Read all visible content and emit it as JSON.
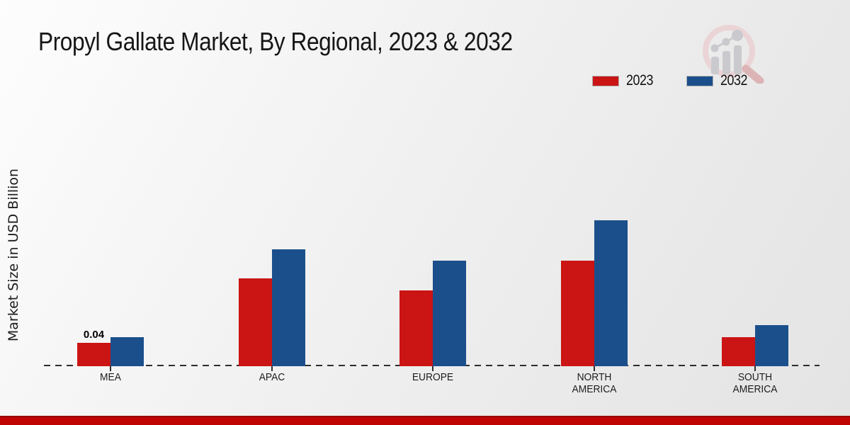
{
  "chart_data": {
    "type": "bar",
    "title": "Propyl Gallate Market, By Regional, 2023 & 2032",
    "xlabel": "",
    "ylabel": "Market Size in USD Billion",
    "categories": [
      "MEA",
      "APAC",
      "EUROPE",
      "NORTH AMERICA",
      "SOUTH AMERICA"
    ],
    "series": [
      {
        "name": "2023",
        "color": "#cb1414",
        "values": [
          0.04,
          0.15,
          0.13,
          0.18,
          0.05
        ]
      },
      {
        "name": "2032",
        "color": "#1b4f8b",
        "values": [
          0.05,
          0.2,
          0.18,
          0.25,
          0.07
        ]
      }
    ],
    "data_labels": [
      {
        "category": "MEA",
        "series": "2023",
        "text": "0.04"
      }
    ],
    "ylim": [
      0,
      0.3
    ],
    "grid": false,
    "axis_style": "dashed-baseline-only",
    "legend_position": "top-right"
  },
  "watermark": {
    "icon": "magnifier-rising-bars-logo"
  },
  "footer": {
    "band_color": "#c00404"
  }
}
